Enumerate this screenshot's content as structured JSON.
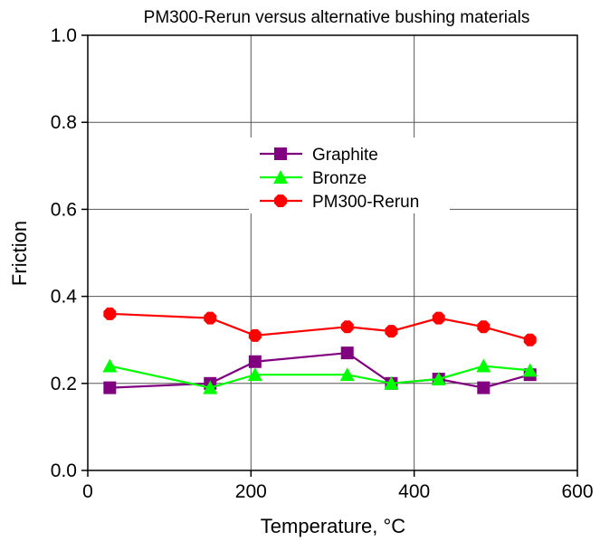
{
  "chart_data": {
    "type": "line",
    "title": "PM300-Rerun versus alternative bushing materials",
    "xlabel": "Temperature, °C",
    "ylabel": "Friction",
    "xlim": [
      0,
      600
    ],
    "ylim": [
      0.0,
      1.0
    ],
    "xticks": [
      0,
      200,
      400,
      600
    ],
    "yticks": [
      0.0,
      0.2,
      0.4,
      0.6,
      0.8,
      1.0
    ],
    "xtick_labels": [
      "0",
      "200",
      "400",
      "600"
    ],
    "ytick_labels": [
      "0.0",
      "0.2",
      "0.4",
      "0.6",
      "0.8",
      "1.0"
    ],
    "grid": true,
    "legend_position": "center",
    "series": [
      {
        "name": "Graphite",
        "color": "#800080",
        "marker": "square",
        "x": [
          27,
          150,
          205,
          318,
          372,
          430,
          485,
          542
        ],
        "y": [
          0.19,
          0.2,
          0.25,
          0.27,
          0.2,
          0.21,
          0.19,
          0.22
        ]
      },
      {
        "name": "Bronze",
        "color": "#00ff00",
        "marker": "triangle",
        "x": [
          27,
          150,
          205,
          318,
          372,
          430,
          485,
          542
        ],
        "y": [
          0.24,
          0.19,
          0.22,
          0.22,
          0.2,
          0.21,
          0.24,
          0.23
        ]
      },
      {
        "name": "PM300-Rerun",
        "color": "#ff0000",
        "marker": "circle",
        "x": [
          27,
          150,
          205,
          318,
          372,
          430,
          485,
          542
        ],
        "y": [
          0.36,
          0.35,
          0.31,
          0.33,
          0.32,
          0.35,
          0.33,
          0.3
        ]
      }
    ]
  }
}
